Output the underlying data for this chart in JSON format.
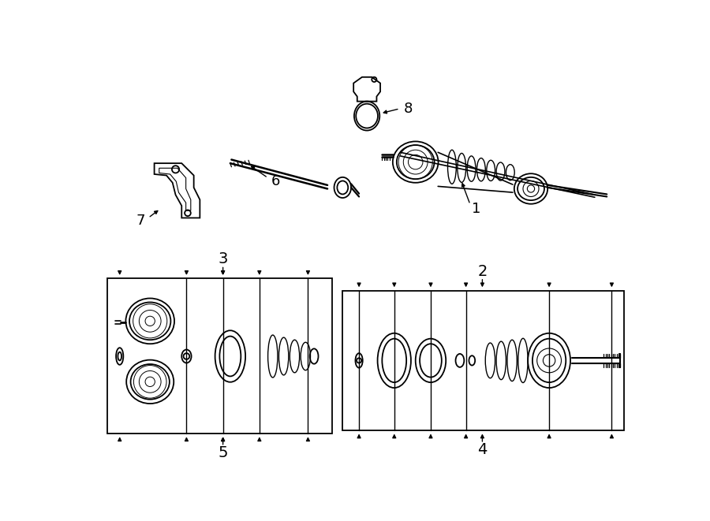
{
  "background_color": "#ffffff",
  "line_color": "#000000",
  "fig_width": 9.0,
  "fig_height": 6.61,
  "dpi": 100
}
